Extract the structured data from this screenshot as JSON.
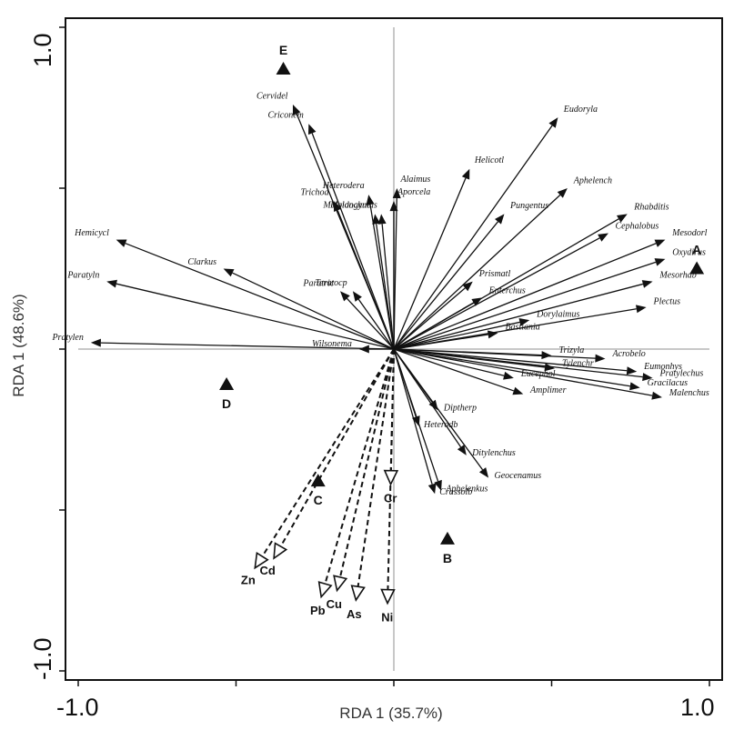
{
  "chart_data": {
    "type": "scatter",
    "subtype": "RDA biplot",
    "xlabel": "RDA 1 (35.7%)",
    "ylabel": "RDA 1 (48.6%)",
    "xlim": [
      -1.0,
      1.0
    ],
    "ylim": [
      -1.0,
      1.0
    ],
    "x_ticks": [
      "-1.0",
      "1.0"
    ],
    "y_ticks": [
      "1.0",
      "-1.0"
    ],
    "reference_lines": "x = 0 and y = 0, light gray",
    "species_arrows": [
      {
        "label": "Cervidel",
        "x": -0.32,
        "y": 0.76
      },
      {
        "label": "Criconem",
        "x": -0.27,
        "y": 0.7
      },
      {
        "label": "Eudoryla",
        "x": 0.52,
        "y": 0.72
      },
      {
        "label": "Helicotl",
        "x": 0.24,
        "y": 0.56
      },
      {
        "label": "Aphelench",
        "x": 0.55,
        "y": 0.5
      },
      {
        "label": "Heterodera",
        "x": -0.08,
        "y": 0.48
      },
      {
        "label": "Alaimus",
        "x": 0.01,
        "y": 0.5
      },
      {
        "label": "Aporcela",
        "x": 0.0,
        "y": 0.46
      },
      {
        "label": "Trichod",
        "x": -0.19,
        "y": 0.46
      },
      {
        "label": "Mylonchulus",
        "x": -0.04,
        "y": 0.42
      },
      {
        "label": "Meloidogyne",
        "x": -0.06,
        "y": 0.42
      },
      {
        "label": "Pungentus",
        "x": 0.35,
        "y": 0.42
      },
      {
        "label": "Rhabditis",
        "x": 0.74,
        "y": 0.42
      },
      {
        "label": "Cephalobus",
        "x": 0.68,
        "y": 0.36
      },
      {
        "label": "Mesodorl",
        "x": 0.86,
        "y": 0.34
      },
      {
        "label": "Oxydirus",
        "x": 0.86,
        "y": 0.28
      },
      {
        "label": "Hemicycl",
        "x": -0.88,
        "y": 0.34
      },
      {
        "label": "Paratyln",
        "x": -0.91,
        "y": 0.21
      },
      {
        "label": "Clarkus",
        "x": -0.54,
        "y": 0.25
      },
      {
        "label": "Prismatl",
        "x": 0.25,
        "y": 0.21
      },
      {
        "label": "Teratocp",
        "x": -0.13,
        "y": 0.18
      },
      {
        "label": "Paratric",
        "x": -0.17,
        "y": 0.18
      },
      {
        "label": "Enterchus",
        "x": 0.28,
        "y": 0.16
      },
      {
        "label": "Mesorhab",
        "x": 0.82,
        "y": 0.21
      },
      {
        "label": "Plectus",
        "x": 0.8,
        "y": 0.13
      },
      {
        "label": "Dorylaimus",
        "x": 0.43,
        "y": 0.09
      },
      {
        "label": "Bastiania",
        "x": 0.33,
        "y": 0.05
      },
      {
        "label": "Pratylen",
        "x": -0.96,
        "y": 0.02
      },
      {
        "label": "Wilsonema",
        "x": -0.11,
        "y": 0.0
      },
      {
        "label": "Trizyla",
        "x": 0.5,
        "y": -0.02
      },
      {
        "label": "Acrobelo",
        "x": 0.67,
        "y": -0.03
      },
      {
        "label": "Eumonhys",
        "x": 0.77,
        "y": -0.07
      },
      {
        "label": "Tylenchr",
        "x": 0.51,
        "y": -0.06
      },
      {
        "label": "Pratylechus",
        "x": 0.82,
        "y": -0.09
      },
      {
        "label": "Eucephol",
        "x": 0.38,
        "y": -0.09
      },
      {
        "label": "Amplimer",
        "x": 0.41,
        "y": -0.14
      },
      {
        "label": "Gracilacus",
        "x": 0.78,
        "y": -0.12
      },
      {
        "label": "Malenchus",
        "x": 0.85,
        "y": -0.15
      },
      {
        "label": "Diptherp",
        "x": 0.14,
        "y": -0.19
      },
      {
        "label": "Heterodb",
        "x": 0.08,
        "y": -0.24
      },
      {
        "label": "Ditylenchus",
        "x": 0.23,
        "y": -0.33
      },
      {
        "label": "Geocenamus",
        "x": 0.3,
        "y": -0.4
      },
      {
        "label": "Aphelenkus",
        "x": 0.15,
        "y": -0.44
      },
      {
        "label": "Crassolb",
        "x": 0.13,
        "y": -0.45
      }
    ],
    "environment_arrows": [
      {
        "label": "Zn",
        "x": -0.44,
        "y": -0.68
      },
      {
        "label": "Cd",
        "x": -0.38,
        "y": -0.65
      },
      {
        "label": "Pb",
        "x": -0.23,
        "y": -0.77
      },
      {
        "label": "Cu",
        "x": -0.18,
        "y": -0.75
      },
      {
        "label": "As",
        "x": -0.12,
        "y": -0.78
      },
      {
        "label": "Ni",
        "x": -0.02,
        "y": -0.79
      },
      {
        "label": "Cr",
        "x": -0.01,
        "y": -0.42
      }
    ],
    "sites": [
      {
        "label": "A",
        "x": 0.96,
        "y": 0.25
      },
      {
        "label": "B",
        "x": 0.17,
        "y": -0.59
      },
      {
        "label": "C",
        "x": -0.24,
        "y": -0.41
      },
      {
        "label": "D",
        "x": -0.53,
        "y": -0.11
      },
      {
        "label": "E",
        "x": -0.35,
        "y": 0.87
      }
    ]
  }
}
